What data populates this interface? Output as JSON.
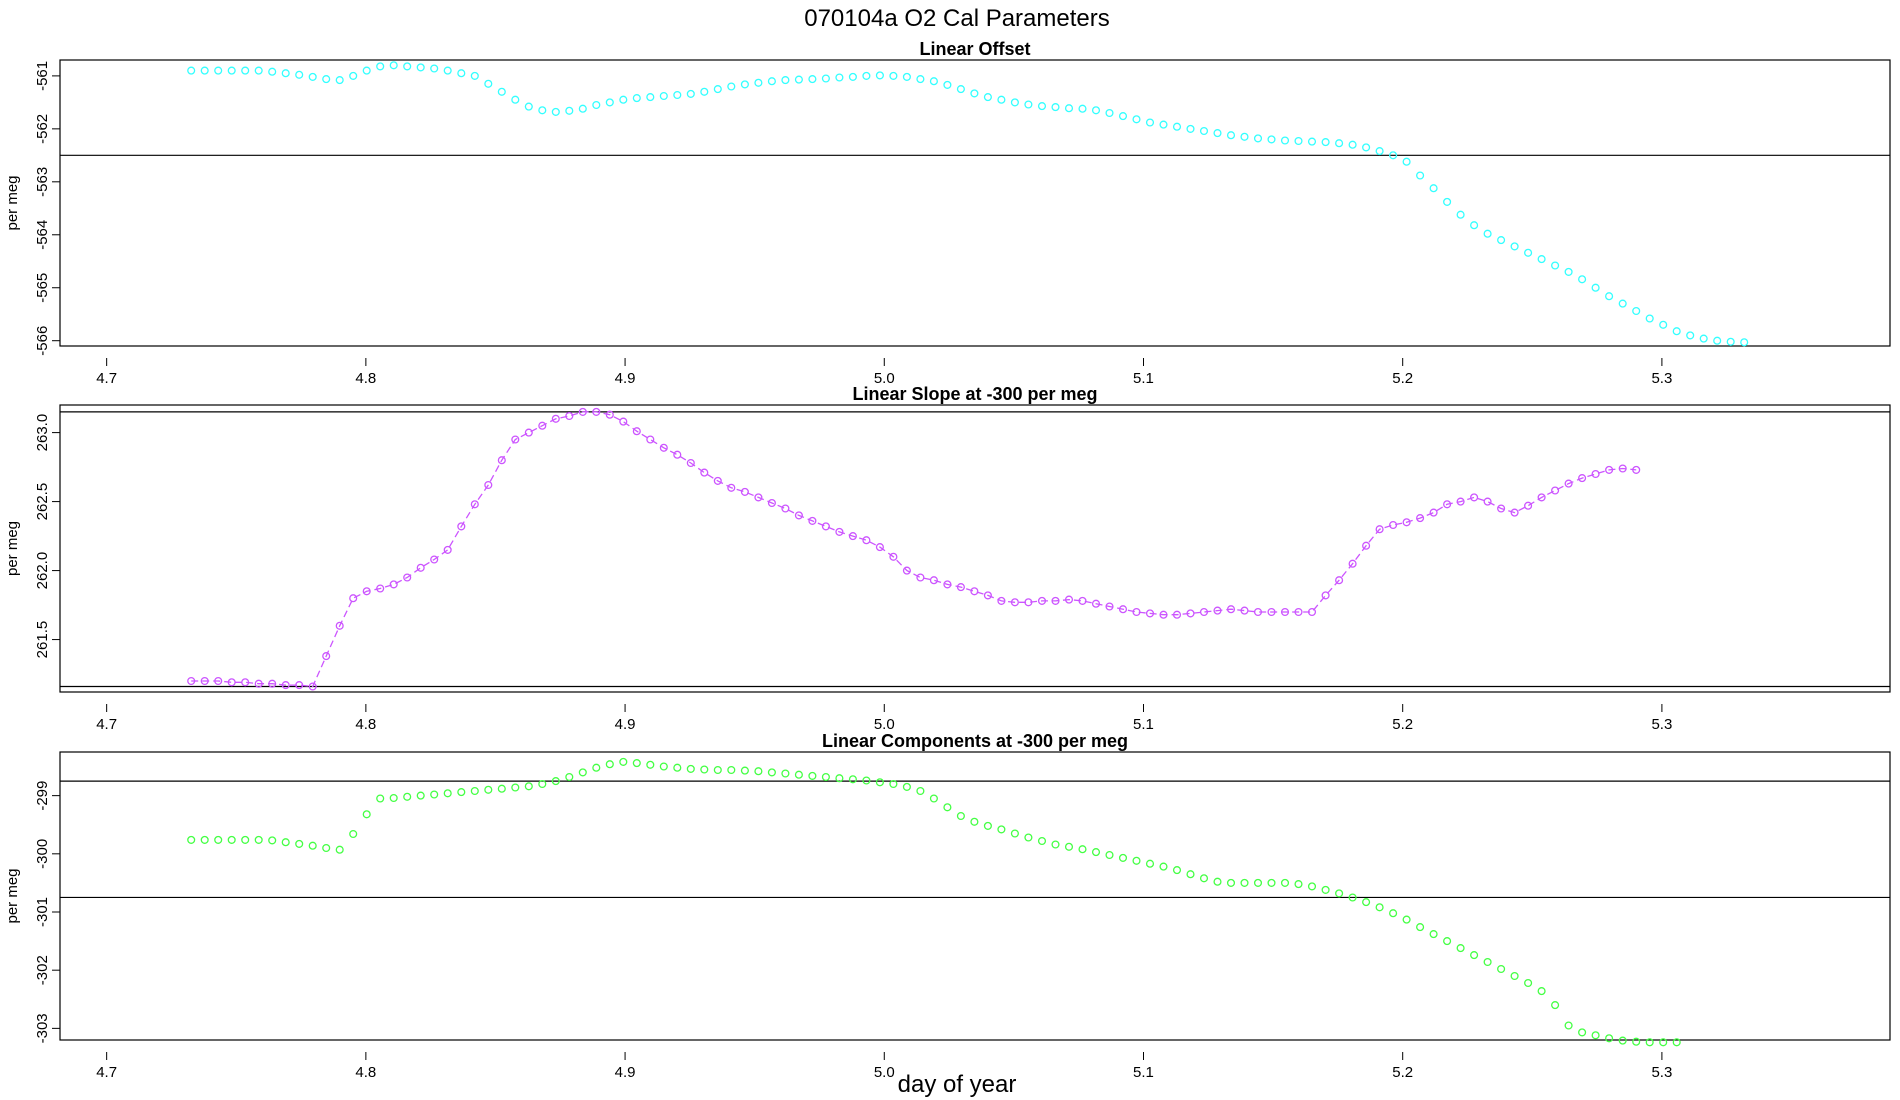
{
  "figure": {
    "title": "070104a   O2 Cal Parameters",
    "xlabel": "day of year",
    "colors": {
      "offset": "#33ffff",
      "slope": "#cc55ff",
      "components": "#44ff44",
      "axis": "#000000"
    }
  },
  "chart_data": [
    {
      "type": "scatter",
      "title": "Linear Offset",
      "ylabel": "per meg",
      "xlim": [
        4.682,
        5.388
      ],
      "ylim": [
        -566.1,
        -560.7
      ],
      "xticks": [
        {
          "value": 4.7,
          "label": "4.7"
        },
        {
          "value": 4.8,
          "label": "4.8"
        },
        {
          "value": 4.9,
          "label": "4.9"
        },
        {
          "value": 5.0,
          "label": "5.0"
        },
        {
          "value": 5.1,
          "label": "5.1"
        },
        {
          "value": 5.2,
          "label": "5.2"
        },
        {
          "value": 5.3,
          "label": "5.3"
        }
      ],
      "yticks": [
        {
          "value": -561,
          "label": "-561"
        },
        {
          "value": -562,
          "label": "-562"
        },
        {
          "value": -563,
          "label": "-563"
        },
        {
          "value": -564,
          "label": "-564"
        },
        {
          "value": -565,
          "label": "-565"
        },
        {
          "value": -566,
          "label": "-566"
        }
      ],
      "hlines": [
        -562.5
      ],
      "connect": false,
      "series": [
        {
          "name": "Linear Offset",
          "x0": 4.7326,
          "dx": 0.00521,
          "y": [
            -560.9,
            -560.9,
            -560.9,
            -560.9,
            -560.9,
            -560.9,
            -560.92,
            -560.95,
            -560.98,
            -561.02,
            -561.06,
            -561.08,
            -561.0,
            -560.9,
            -560.82,
            -560.8,
            -560.82,
            -560.84,
            -560.86,
            -560.9,
            -560.95,
            -561.0,
            -561.15,
            -561.3,
            -561.45,
            -561.58,
            -561.65,
            -561.68,
            -561.66,
            -561.62,
            -561.55,
            -561.5,
            -561.45,
            -561.42,
            -561.4,
            -561.38,
            -561.36,
            -561.34,
            -561.3,
            -561.25,
            -561.2,
            -561.16,
            -561.13,
            -561.1,
            -561.08,
            -561.07,
            -561.06,
            -561.05,
            -561.03,
            -561.02,
            -561.0,
            -560.99,
            -561.0,
            -561.02,
            -561.06,
            -561.1,
            -561.17,
            -561.25,
            -561.33,
            -561.4,
            -561.45,
            -561.5,
            -561.54,
            -561.57,
            -561.59,
            -561.61,
            -561.62,
            -561.65,
            -561.7,
            -561.76,
            -561.82,
            -561.88,
            -561.92,
            -561.96,
            -562.0,
            -562.04,
            -562.08,
            -562.12,
            -562.15,
            -562.18,
            -562.2,
            -562.22,
            -562.23,
            -562.24,
            -562.25,
            -562.27,
            -562.3,
            -562.35,
            -562.42,
            -562.5,
            -562.62,
            -562.88,
            -563.12,
            -563.38,
            -563.62,
            -563.82,
            -563.98,
            -564.1,
            -564.22,
            -564.34,
            -564.46,
            -564.58,
            -564.7,
            -564.84,
            -565.0,
            -565.16,
            -565.3,
            -565.44,
            -565.58,
            -565.7,
            -565.82,
            -565.9,
            -565.96,
            -566.0,
            -566.02,
            -566.03
          ]
        }
      ]
    },
    {
      "type": "line",
      "title": "Linear Slope at -300 per meg",
      "ylabel": "per meg",
      "xlim": [
        4.682,
        5.388
      ],
      "ylim": [
        261.12,
        263.2
      ],
      "xticks": [
        {
          "value": 4.7,
          "label": "4.7"
        },
        {
          "value": 4.8,
          "label": "4.8"
        },
        {
          "value": 4.9,
          "label": "4.9"
        },
        {
          "value": 5.0,
          "label": "5.0"
        },
        {
          "value": 5.1,
          "label": "5.1"
        },
        {
          "value": 5.2,
          "label": "5.2"
        },
        {
          "value": 5.3,
          "label": "5.3"
        }
      ],
      "yticks": [
        {
          "value": 261.5,
          "label": "261.5"
        },
        {
          "value": 262.0,
          "label": "262.0"
        },
        {
          "value": 262.5,
          "label": "262.5"
        },
        {
          "value": 263.0,
          "label": "263.0"
        }
      ],
      "hlines": [
        261.16,
        263.15
      ],
      "connect": true,
      "series": [
        {
          "name": "Linear Slope",
          "x0": 4.7326,
          "dx": 0.00521,
          "y": [
            261.2,
            261.2,
            261.2,
            261.19,
            261.19,
            261.18,
            261.18,
            261.17,
            261.17,
            261.16,
            261.38,
            261.6,
            261.8,
            261.85,
            261.87,
            261.9,
            261.95,
            262.02,
            262.08,
            262.15,
            262.32,
            262.48,
            262.62,
            262.8,
            262.95,
            263.0,
            263.05,
            263.1,
            263.12,
            263.15,
            263.15,
            263.13,
            263.08,
            263.01,
            262.95,
            262.89,
            262.84,
            262.78,
            262.71,
            262.65,
            262.6,
            262.57,
            262.53,
            262.49,
            262.45,
            262.4,
            262.36,
            262.32,
            262.28,
            262.25,
            262.22,
            262.17,
            262.1,
            262.0,
            261.95,
            261.93,
            261.9,
            261.88,
            261.85,
            261.82,
            261.78,
            261.77,
            261.77,
            261.78,
            261.78,
            261.79,
            261.78,
            261.76,
            261.74,
            261.72,
            261.7,
            261.69,
            261.68,
            261.68,
            261.69,
            261.7,
            261.71,
            261.72,
            261.71,
            261.7,
            261.7,
            261.7,
            261.7,
            261.7,
            261.82,
            261.93,
            262.05,
            262.18,
            262.3,
            262.33,
            262.35,
            262.38,
            262.42,
            262.48,
            262.5,
            262.53,
            262.5,
            262.45,
            262.42,
            262.47,
            262.53,
            262.58,
            262.63,
            262.67,
            262.7,
            262.73,
            262.74,
            262.73
          ]
        }
      ]
    },
    {
      "type": "scatter",
      "title": "Linear Components at -300 per meg",
      "ylabel": "per meg",
      "xlim": [
        4.682,
        5.388
      ],
      "ylim": [
        -303.2,
        -298.25
      ],
      "xticks": [
        {
          "value": 4.7,
          "label": "4.7"
        },
        {
          "value": 4.8,
          "label": "4.8"
        },
        {
          "value": 4.9,
          "label": "4.9"
        },
        {
          "value": 5.0,
          "label": "5.0"
        },
        {
          "value": 5.1,
          "label": "5.1"
        },
        {
          "value": 5.2,
          "label": "5.2"
        },
        {
          "value": 5.3,
          "label": "5.3"
        }
      ],
      "yticks": [
        {
          "value": -299,
          "label": "-299"
        },
        {
          "value": -300,
          "label": "-300"
        },
        {
          "value": -301,
          "label": "-301"
        },
        {
          "value": -302,
          "label": "-302"
        },
        {
          "value": -303,
          "label": "-303"
        }
      ],
      "hlines": [
        -298.75,
        -300.75
      ],
      "connect": false,
      "series": [
        {
          "name": "Linear Components",
          "x0": 4.7326,
          "dx": 0.00521,
          "y": [
            -299.76,
            -299.76,
            -299.76,
            -299.76,
            -299.76,
            -299.76,
            -299.77,
            -299.8,
            -299.83,
            -299.86,
            -299.9,
            -299.93,
            -299.66,
            -299.32,
            -299.05,
            -299.04,
            -299.02,
            -299.0,
            -298.98,
            -298.96,
            -298.94,
            -298.92,
            -298.9,
            -298.88,
            -298.86,
            -298.84,
            -298.8,
            -298.75,
            -298.68,
            -298.6,
            -298.52,
            -298.46,
            -298.42,
            -298.44,
            -298.47,
            -298.5,
            -298.52,
            -298.54,
            -298.55,
            -298.56,
            -298.56,
            -298.57,
            -298.58,
            -298.6,
            -298.62,
            -298.64,
            -298.66,
            -298.68,
            -298.7,
            -298.72,
            -298.74,
            -298.77,
            -298.8,
            -298.85,
            -298.92,
            -299.05,
            -299.2,
            -299.35,
            -299.45,
            -299.52,
            -299.58,
            -299.65,
            -299.72,
            -299.78,
            -299.84,
            -299.88,
            -299.92,
            -299.97,
            -300.02,
            -300.07,
            -300.12,
            -300.17,
            -300.22,
            -300.28,
            -300.35,
            -300.42,
            -300.48,
            -300.5,
            -300.5,
            -300.5,
            -300.5,
            -300.5,
            -300.52,
            -300.56,
            -300.62,
            -300.68,
            -300.75,
            -300.83,
            -300.92,
            -301.02,
            -301.13,
            -301.26,
            -301.38,
            -301.5,
            -301.62,
            -301.74,
            -301.86,
            -301.98,
            -302.1,
            -302.22,
            -302.36,
            -302.6,
            -302.95,
            -303.07,
            -303.12,
            -303.17,
            -303.21,
            -303.23,
            -303.24,
            -303.24,
            -303.24
          ]
        }
      ]
    }
  ]
}
